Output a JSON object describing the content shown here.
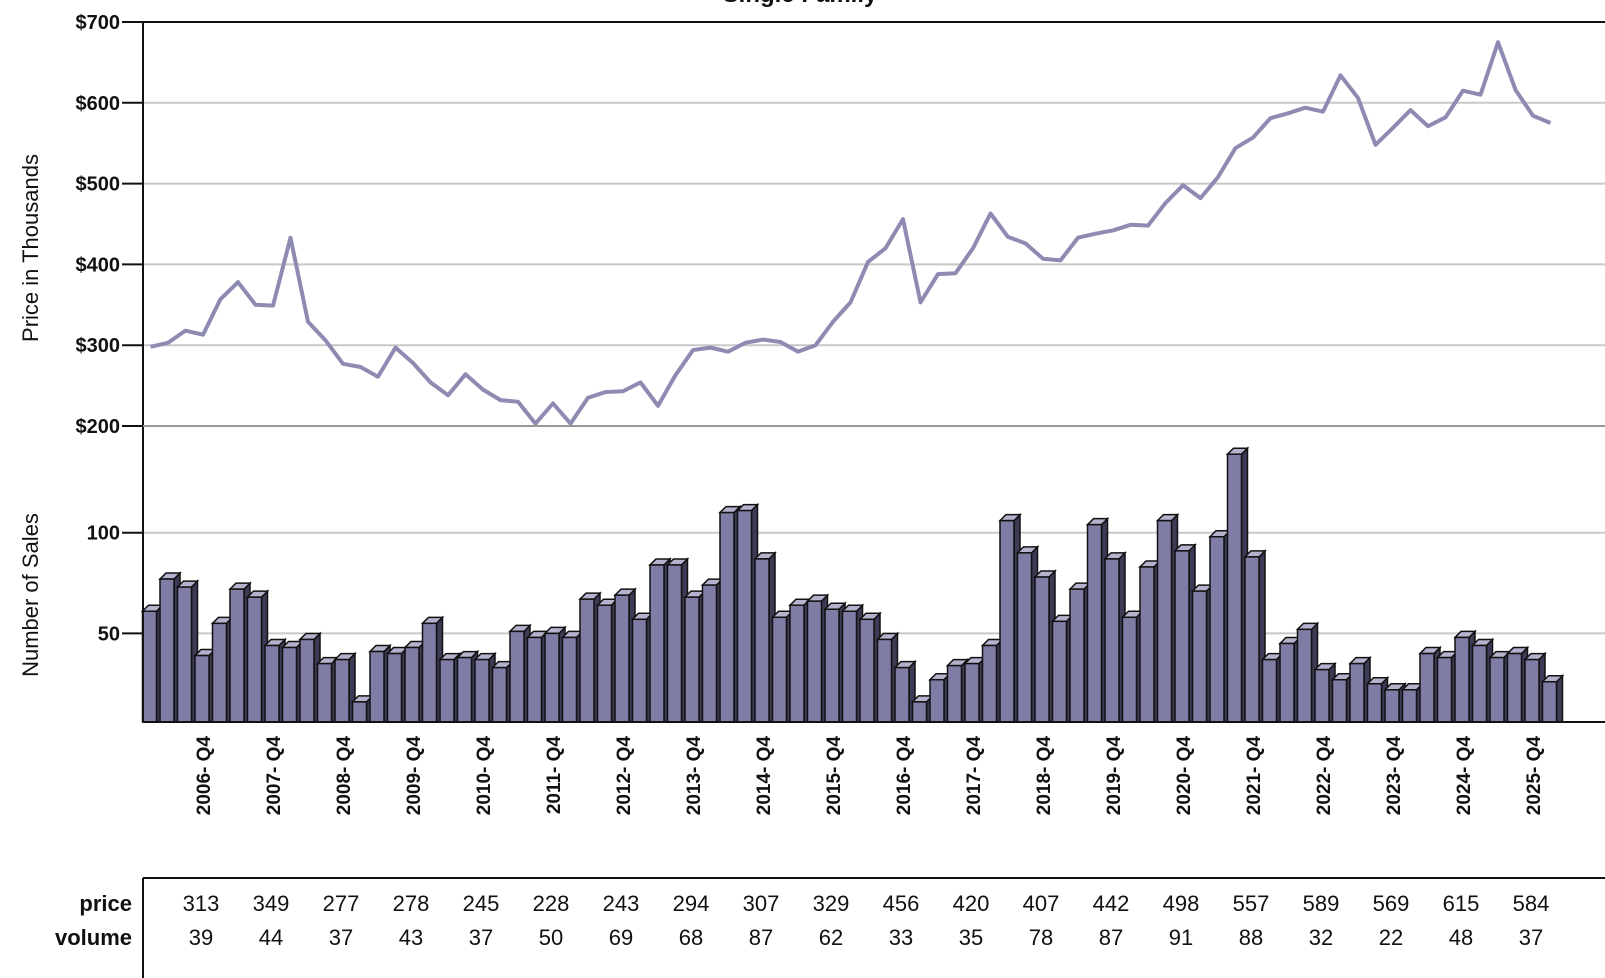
{
  "chart_data": {
    "type": "combo",
    "title": "Single Family",
    "y_label": "Price in Thousands",
    "y2_label": "Number of Sales",
    "categories": [
      null,
      null,
      null,
      "2006- Q4",
      null,
      null,
      null,
      "2007- Q4",
      null,
      null,
      null,
      "2008- Q4",
      null,
      null,
      null,
      "2009- Q4",
      null,
      null,
      null,
      "2010- Q4",
      null,
      null,
      null,
      "2011- Q4",
      null,
      null,
      null,
      "2012- Q4",
      null,
      null,
      null,
      "2013- Q4",
      null,
      null,
      null,
      "2014- Q4",
      null,
      null,
      null,
      "2015- Q4",
      null,
      null,
      null,
      "2016- Q4",
      null,
      null,
      null,
      "2017- Q4",
      null,
      null,
      null,
      "2018- Q4",
      null,
      null,
      null,
      "2019- Q4",
      null,
      null,
      null,
      "2020- Q4",
      null,
      null,
      null,
      "2021- Q4",
      null,
      null,
      null,
      "2022- Q4",
      null,
      null,
      null,
      "2023- Q4",
      null,
      null,
      null,
      "2024- Q4",
      null,
      null,
      null,
      "2025- Q4",
      null
    ],
    "series": [
      {
        "type": "line",
        "axis": "y",
        "color": "#8e8bb2",
        "values": [
          298,
          303,
          318,
          313,
          357,
          378,
          350,
          349,
          433,
          329,
          306,
          277,
          273,
          261,
          297,
          278,
          254,
          238,
          264,
          245,
          232,
          230,
          203,
          228,
          203,
          235,
          242,
          243,
          254,
          225,
          263,
          294,
          297,
          292,
          303,
          307,
          304,
          292,
          300,
          329,
          353,
          403,
          420,
          456,
          353,
          388,
          389,
          420,
          463,
          434,
          426,
          407,
          405,
          433,
          438,
          442,
          449,
          448,
          476,
          498,
          482,
          508,
          544,
          557,
          581,
          587,
          594,
          589,
          634,
          606,
          548,
          569,
          591,
          571,
          582,
          615,
          610,
          675,
          616,
          584,
          575
        ]
      },
      {
        "type": "bar",
        "axis": "y2",
        "color": "#7f7ca6",
        "values": [
          61,
          77,
          73,
          39,
          55,
          72,
          68,
          44,
          43,
          47,
          35,
          37,
          16,
          41,
          40,
          43,
          55,
          37,
          38,
          37,
          33,
          51,
          48,
          50,
          48,
          67,
          64,
          69,
          57,
          84,
          84,
          68,
          74,
          110,
          111,
          87,
          58,
          64,
          66,
          62,
          61,
          57,
          47,
          33,
          16,
          27,
          34,
          35,
          44,
          106,
          90,
          78,
          56,
          72,
          104,
          87,
          58,
          83,
          106,
          91,
          71,
          98,
          139,
          88,
          37,
          45,
          52,
          32,
          27,
          35,
          25,
          22,
          22,
          40,
          38,
          48,
          44,
          38,
          40,
          37,
          26
        ]
      }
    ],
    "ylim": [
      200,
      700
    ],
    "yticks": [
      {
        "value": 200,
        "label": "$200"
      },
      {
        "value": 300,
        "label": "$300"
      },
      {
        "value": 400,
        "label": "$400"
      },
      {
        "value": 500,
        "label": "$500"
      },
      {
        "value": 600,
        "label": "$600"
      },
      {
        "value": 700,
        "label": "$700"
      }
    ],
    "y2lim": [
      6,
      153
    ],
    "y2ticks": [
      50,
      100
    ],
    "grid": true
  },
  "table": {
    "row_labels": [
      "price",
      "volume"
    ],
    "rows": [
      [
        313,
        349,
        277,
        278,
        245,
        228,
        243,
        294,
        307,
        329,
        456,
        420,
        407,
        442,
        498,
        557,
        589,
        569,
        615,
        584
      ],
      [
        39,
        44,
        37,
        43,
        37,
        50,
        69,
        68,
        87,
        62,
        33,
        35,
        78,
        87,
        91,
        88,
        32,
        22,
        48,
        37
      ]
    ]
  }
}
